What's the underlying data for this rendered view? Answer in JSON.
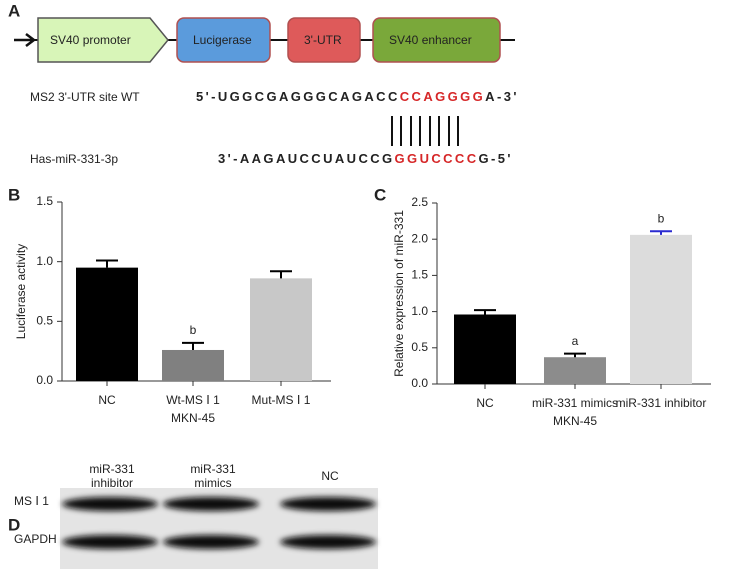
{
  "panels": [
    "A",
    "B",
    "C",
    "D"
  ],
  "construct": {
    "segments": [
      "SV40 promoter",
      "Lucigerase",
      "3'-UTR",
      "SV40 enhancer"
    ],
    "colors": [
      "#d8f5b8",
      "#5b9bdc",
      "#de5a5a",
      "#7aa83a"
    ]
  },
  "sequences": [
    {
      "label": "MS2 3'-UTR site WT",
      "parts": [
        "5'-UGGCGAGGGCAGACC",
        "CCAGGGG",
        "A-3'"
      ],
      "highlight_index": 1
    },
    {
      "label": "Has-miR-331-3p",
      "parts": [
        "3'-AAGAUCCUAUCCG",
        "GGUCCCC",
        "G-5'"
      ],
      "highlight_index": 1
    }
  ],
  "highlight_color": "#d62728",
  "chart_data": [
    {
      "type": "bar",
      "ylabel": "Luciferase activity",
      "categories": [
        "NC",
        "Wt-MS Ⅰ 1",
        "Mut-MS Ⅰ 1"
      ],
      "group_label": "MKN-45",
      "values": [
        0.95,
        0.26,
        0.86
      ],
      "errors": [
        0.06,
        0.06,
        0.06
      ],
      "colors": [
        "#000000",
        "#808080",
        "#c8c8c8"
      ],
      "error_colors": [
        "#000000",
        "#000000",
        "#000000"
      ],
      "annotations": [
        {
          "text": "b",
          "index": 1
        }
      ],
      "ylim": [
        0,
        1.5
      ],
      "yticks": [
        {
          "value": 0,
          "label": "0.0"
        },
        {
          "value": 0.5,
          "label": "0.5"
        },
        {
          "value": 1,
          "label": "1.0"
        },
        {
          "value": 1.5,
          "label": "1.5"
        }
      ]
    },
    {
      "type": "bar",
      "ylabel": "Relative expression of miR-331",
      "categories": [
        "NC",
        "miR-331 mimics",
        "miR-331 inhibitor"
      ],
      "group_label": "MKN-45",
      "values": [
        0.96,
        0.37,
        2.06
      ],
      "errors": [
        0.06,
        0.05,
        0.05
      ],
      "colors": [
        "#000000",
        "#8c8c8c",
        "#dcdcdc"
      ],
      "error_colors": [
        "#000000",
        "#000000",
        "#2a2ad0"
      ],
      "annotations": [
        {
          "text": "a",
          "index": 1
        },
        {
          "text": "b",
          "index": 2
        }
      ],
      "ylim": [
        0,
        2.5
      ],
      "yticks": [
        {
          "value": 0,
          "label": "0.0"
        },
        {
          "value": 0.5,
          "label": "0.5"
        },
        {
          "value": 1,
          "label": "1.0"
        },
        {
          "value": 1.5,
          "label": "1.5"
        },
        {
          "value": 2,
          "label": "2.0"
        },
        {
          "value": 2.5,
          "label": "2.5"
        }
      ]
    }
  ],
  "blot": {
    "columns": [
      [
        "miR-331",
        "inhibitor"
      ],
      [
        "miR-331",
        "mimics"
      ],
      [
        "NC"
      ]
    ],
    "rows": [
      "MS Ⅰ 1",
      "GAPDH"
    ]
  }
}
